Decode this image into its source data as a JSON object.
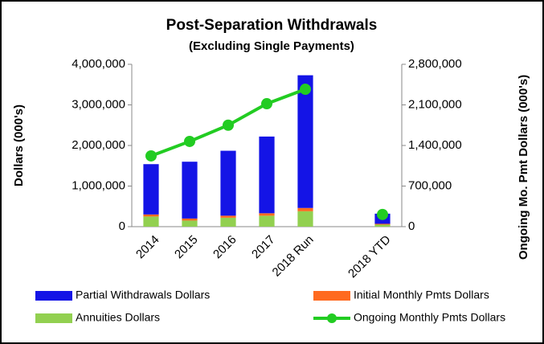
{
  "chart_data": {
    "type": "bar",
    "stacked": true,
    "title": "Post-Separation Withdrawals",
    "subtitle": "(Excluding Single Payments)",
    "y_label": "Dollars (000's)",
    "y2_label": "Ongoing Mo. Pmt Dollars (000's)",
    "categories": [
      "2014",
      "2015",
      "2016",
      "2017",
      "2018 Run",
      null,
      "2018 YTD"
    ],
    "series": [
      {
        "name": "Partial Withdrawals Dollars",
        "type": "bar",
        "color": "#1414e6",
        "values": [
          1240000,
          1400000,
          1600000,
          1890000,
          3270000,
          null,
          250000
        ]
      },
      {
        "name": "Initial Monthly Pmts Dollars",
        "type": "bar",
        "color": "#ff6a1f",
        "values": [
          50000,
          50000,
          50000,
          60000,
          80000,
          null,
          20000
        ]
      },
      {
        "name": "Annuities Dollars",
        "type": "bar",
        "color": "#92d050",
        "values": [
          250000,
          150000,
          220000,
          270000,
          380000,
          null,
          50000
        ]
      },
      {
        "name": "Ongoing Monthly Pmts Dollars",
        "type": "line",
        "axis": "y2",
        "color": "#22cc22",
        "values": [
          1220000,
          1470000,
          1750000,
          2120000,
          2370000,
          null,
          210000
        ]
      }
    ],
    "ylim": [
      0,
      4000000
    ],
    "yticks": [
      0,
      {
        "value": 1000000,
        "label": "1,000,000"
      },
      {
        "value": 2000000,
        "label": "2,000,000"
      },
      {
        "value": 3000000,
        "label": "3,000,000"
      },
      {
        "value": 4000000,
        "label": "4,000,000"
      }
    ],
    "y2lim": [
      0,
      2800000
    ],
    "y2ticks": [
      0,
      {
        "value": 700000,
        "label": "700,000"
      },
      {
        "value": 1400000,
        "label": "1,400,000"
      },
      {
        "value": 2100000,
        "label": "2,100,000"
      },
      {
        "value": 2800000,
        "label": "2,800,000"
      }
    ],
    "grid": false,
    "legend": "bottom"
  }
}
